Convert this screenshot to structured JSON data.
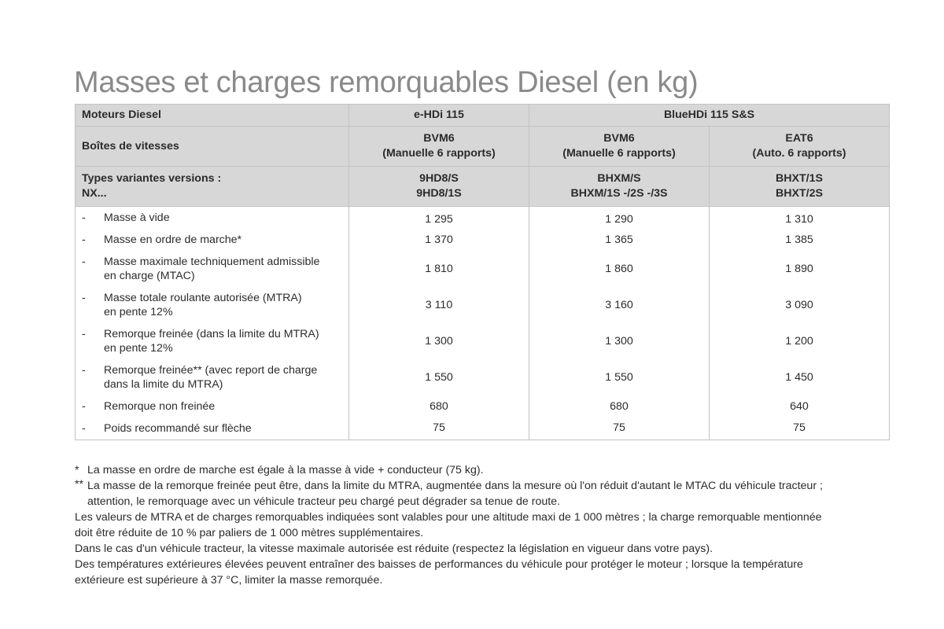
{
  "page": {
    "title": "Masses et charges remorquables Diesel (en kg)"
  },
  "table": {
    "header": {
      "motor_label": "Moteurs Diesel",
      "motor_ehdi": "e-HDi 115",
      "motor_bluehdi": "BlueHDi 115 S&S",
      "gearbox_label": "Boîtes de vitesses",
      "gearboxes": [
        {
          "name": "BVM6",
          "detail": "(Manuelle 6 rapports)"
        },
        {
          "name": "BVM6",
          "detail": "(Manuelle 6 rapports)"
        },
        {
          "name": "EAT6",
          "detail": "(Auto. 6 rapports)"
        }
      ],
      "types_label_line1": "Types variantes versions :",
      "types_label_line2": "NX...",
      "types": [
        {
          "line1": "9HD8/S",
          "line2": "9HD8/1S"
        },
        {
          "line1": "BHXM/S",
          "line2": "BHXM/1S -/2S -/3S"
        },
        {
          "line1": "BHXT/1S",
          "line2": "BHXT/2S"
        }
      ]
    },
    "rows": [
      {
        "dash": "-",
        "line1": "Masse à vide",
        "line2": "",
        "values": [
          "1 295",
          "1 290",
          "1 310"
        ]
      },
      {
        "dash": "-",
        "line1": "Masse en ordre de marche*",
        "line2": "",
        "values": [
          "1 370",
          "1 365",
          "1 385"
        ]
      },
      {
        "dash": "-",
        "line1": "Masse maximale techniquement admissible",
        "line2": "en charge (MTAC)",
        "values": [
          "1 810",
          "1 860",
          "1 890"
        ]
      },
      {
        "dash": "-",
        "line1": "Masse totale roulante autorisée (MTRA)",
        "line2": "en pente 12%",
        "values": [
          "3 110",
          "3 160",
          "3 090"
        ]
      },
      {
        "dash": "-",
        "line1": "Remorque freinée (dans la limite du MTRA)",
        "line2": "en pente 12%",
        "values": [
          "1 300",
          "1 300",
          "1 200"
        ]
      },
      {
        "dash": "-",
        "line1": "Remorque freinée** (avec report de charge",
        "line2": "dans la limite du MTRA)",
        "values": [
          "1 550",
          "1 550",
          "1 450"
        ]
      },
      {
        "dash": "-",
        "line1": "Remorque non freinée",
        "line2": "",
        "values": [
          "680",
          "680",
          "640"
        ]
      },
      {
        "dash": "-",
        "line1": "Poids recommandé sur flèche",
        "line2": "",
        "values": [
          "75",
          "75",
          "75"
        ]
      }
    ]
  },
  "notes": {
    "footnote1_mark": "*",
    "footnote1": "La masse en ordre de marche est égale à la masse à vide + conducteur (75 kg).",
    "footnote2_mark": "**",
    "footnote2_line1": "La masse de la remorque freinée peut être, dans la limite du MTRA, augmentée dans la mesure où l'on réduit d'autant le MTAC du véhicule tracteur ;",
    "footnote2_line2": "attention, le remorquage avec un véhicule tracteur peu chargé peut dégrader sa tenue de route.",
    "para1_line1": "Les valeurs de MTRA et de charges remorquables indiquées sont valables pour une altitude maxi de 1 000 mètres ; la charge remorquable mentionnée",
    "para1_line2": "doit être réduite de 10 % par paliers de 1 000 mètres supplémentaires.",
    "para2": "Dans le cas d'un véhicule tracteur, la vitesse maximale autorisée est réduite (respectez la législation en vigueur dans votre pays).",
    "para3_line1": "Des températures extérieures élevées peuvent entraîner des baisses de performances du véhicule pour protéger le moteur ; lorsque la température",
    "para3_line2": "extérieure est supérieure à 37 °C, limiter la masse remorquée."
  }
}
